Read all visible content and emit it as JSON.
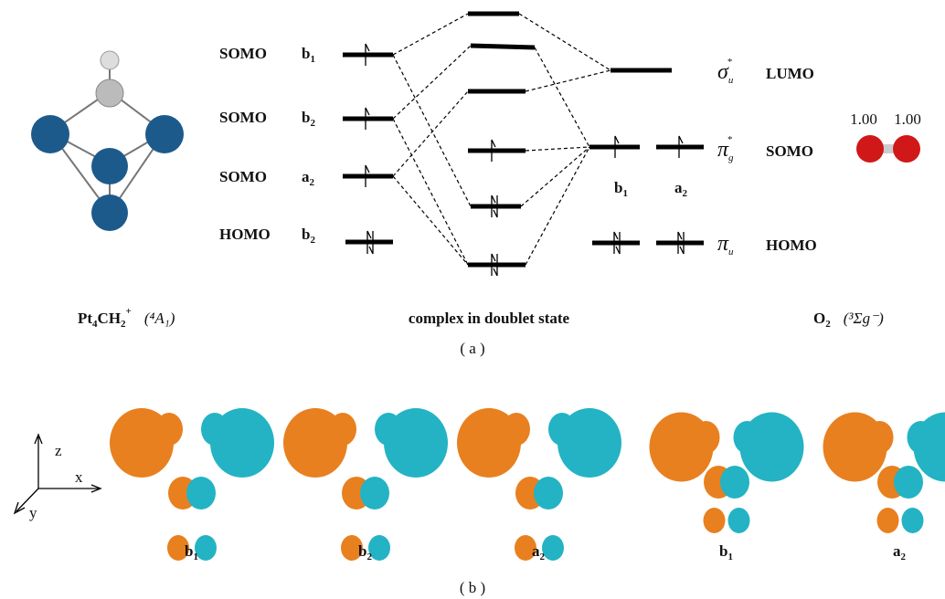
{
  "left_levels": [
    {
      "state": "SOMO",
      "sym": {
        "main": "b",
        "sub": "1"
      }
    },
    {
      "state": "SOMO",
      "sym": {
        "main": "b",
        "sub": "2"
      }
    },
    {
      "state": "SOMO",
      "sym": {
        "main": "a",
        "sub": "2"
      }
    },
    {
      "state": "HOMO",
      "sym": {
        "main": "b",
        "sub": "2"
      }
    }
  ],
  "right_levels": [
    {
      "orbital": {
        "main": "σ",
        "sub": "u",
        "sup": "*"
      },
      "state": "LUMO"
    },
    {
      "orbital": {
        "main": "π",
        "sub": "g",
        "sup": "*"
      },
      "state": "SOMO"
    },
    {
      "orbital": {
        "main": "π",
        "sub": "u"
      },
      "state": "HOMO"
    }
  ],
  "o2_syms": [
    {
      "main": "b",
      "sub": "1"
    },
    {
      "main": "a",
      "sub": "2"
    }
  ],
  "spin_densities": [
    "1.00",
    "1.00"
  ],
  "captions": {
    "left": {
      "main": "Pt",
      "sub1": "4",
      "mid": "CH",
      "sub2": "2",
      "sup": "+",
      "term": "(⁴A₁)"
    },
    "middle": "complex in doublet state",
    "right": {
      "main": "O",
      "sub": "2",
      "term": "(³Σg⁻)"
    },
    "panel_a": "( a )",
    "panel_b": "( b )"
  },
  "axes": {
    "z": "z",
    "x": "x",
    "y": "y"
  },
  "orbital_labels": [
    {
      "main": "b",
      "sub": "1"
    },
    {
      "main": "b",
      "sub": "2"
    },
    {
      "main": "a",
      "sub": "2"
    },
    {
      "main": "b",
      "sub": "1"
    },
    {
      "main": "a",
      "sub": "2"
    }
  ]
}
